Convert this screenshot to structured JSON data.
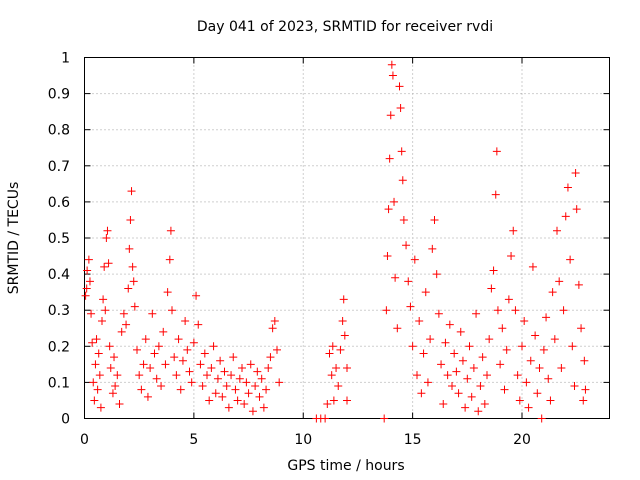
{
  "chart_data": {
    "type": "scatter",
    "title": "Day 041 of 2023, SRMTID for receiver rvdi",
    "xlabel": "GPS time / hours",
    "ylabel": "SRMTID / TECUs",
    "xlim": [
      0,
      24
    ],
    "ylim": [
      0,
      1
    ],
    "x_ticks": [
      0,
      5,
      10,
      15,
      20
    ],
    "x_tick_labels": [
      "0",
      "5",
      "10",
      "15",
      "20"
    ],
    "y_ticks": [
      0,
      0.1,
      0.2,
      0.3,
      0.4,
      0.5,
      0.6,
      0.7,
      0.8,
      0.9,
      1
    ],
    "y_tick_labels": [
      "0",
      "0.1",
      "0.2",
      "0.3",
      "0.4",
      "0.5",
      "0.6",
      "0.7",
      "0.8",
      "0.9",
      "1"
    ],
    "grid": true,
    "marker": "+",
    "marker_color": "#ff0000",
    "series": [
      {
        "name": "SRMTID",
        "points": [
          [
            0.05,
            0.34
          ],
          [
            0.1,
            0.36
          ],
          [
            0.12,
            0.41
          ],
          [
            0.2,
            0.44
          ],
          [
            0.25,
            0.38
          ],
          [
            0.3,
            0.29
          ],
          [
            0.35,
            0.21
          ],
          [
            0.4,
            0.1
          ],
          [
            0.45,
            0.05
          ],
          [
            0.5,
            0.15
          ],
          [
            0.55,
            0.22
          ],
          [
            0.6,
            0.08
          ],
          [
            0.65,
            0.18
          ],
          [
            0.7,
            0.12
          ],
          [
            0.75,
            0.03
          ],
          [
            0.8,
            0.27
          ],
          [
            0.85,
            0.33
          ],
          [
            0.9,
            0.42
          ],
          [
            0.95,
            0.3
          ],
          [
            1.0,
            0.5
          ],
          [
            1.05,
            0.52
          ],
          [
            1.1,
            0.43
          ],
          [
            1.15,
            0.2
          ],
          [
            1.2,
            0.14
          ],
          [
            1.3,
            0.07
          ],
          [
            1.35,
            0.17
          ],
          [
            1.4,
            0.09
          ],
          [
            1.5,
            0.12
          ],
          [
            1.6,
            0.04
          ],
          [
            1.7,
            0.24
          ],
          [
            1.8,
            0.29
          ],
          [
            1.9,
            0.26
          ],
          [
            2.0,
            0.36
          ],
          [
            2.05,
            0.47
          ],
          [
            2.1,
            0.55
          ],
          [
            2.15,
            0.63
          ],
          [
            2.2,
            0.42
          ],
          [
            2.25,
            0.38
          ],
          [
            2.3,
            0.31
          ],
          [
            2.4,
            0.19
          ],
          [
            2.5,
            0.12
          ],
          [
            2.6,
            0.08
          ],
          [
            2.7,
            0.15
          ],
          [
            2.8,
            0.22
          ],
          [
            2.9,
            0.06
          ],
          [
            3.0,
            0.14
          ],
          [
            3.1,
            0.29
          ],
          [
            3.2,
            0.18
          ],
          [
            3.3,
            0.11
          ],
          [
            3.4,
            0.2
          ],
          [
            3.5,
            0.09
          ],
          [
            3.6,
            0.24
          ],
          [
            3.7,
            0.15
          ],
          [
            3.8,
            0.35
          ],
          [
            3.9,
            0.44
          ],
          [
            3.95,
            0.52
          ],
          [
            4.0,
            0.3
          ],
          [
            4.1,
            0.17
          ],
          [
            4.2,
            0.12
          ],
          [
            4.3,
            0.22
          ],
          [
            4.4,
            0.08
          ],
          [
            4.5,
            0.16
          ],
          [
            4.6,
            0.27
          ],
          [
            4.7,
            0.19
          ],
          [
            4.8,
            0.13
          ],
          [
            4.9,
            0.1
          ],
          [
            5.0,
            0.21
          ],
          [
            5.1,
            0.34
          ],
          [
            5.2,
            0.26
          ],
          [
            5.3,
            0.15
          ],
          [
            5.4,
            0.09
          ],
          [
            5.5,
            0.18
          ],
          [
            5.6,
            0.12
          ],
          [
            5.7,
            0.05
          ],
          [
            5.8,
            0.14
          ],
          [
            5.9,
            0.2
          ],
          [
            6.0,
            0.07
          ],
          [
            6.1,
            0.11
          ],
          [
            6.2,
            0.16
          ],
          [
            6.3,
            0.06
          ],
          [
            6.4,
            0.13
          ],
          [
            6.5,
            0.09
          ],
          [
            6.6,
            0.03
          ],
          [
            6.7,
            0.12
          ],
          [
            6.8,
            0.17
          ],
          [
            6.9,
            0.08
          ],
          [
            7.0,
            0.05
          ],
          [
            7.1,
            0.11
          ],
          [
            7.2,
            0.14
          ],
          [
            7.3,
            0.04
          ],
          [
            7.4,
            0.1
          ],
          [
            7.5,
            0.07
          ],
          [
            7.6,
            0.15
          ],
          [
            7.7,
            0.02
          ],
          [
            7.8,
            0.09
          ],
          [
            7.9,
            0.13
          ],
          [
            8.0,
            0.06
          ],
          [
            8.1,
            0.11
          ],
          [
            8.2,
            0.03
          ],
          [
            8.3,
            0.08
          ],
          [
            8.4,
            0.14
          ],
          [
            8.5,
            0.17
          ],
          [
            8.6,
            0.25
          ],
          [
            8.7,
            0.27
          ],
          [
            8.8,
            0.19
          ],
          [
            8.9,
            0.1
          ],
          [
            10.6,
            0.0
          ],
          [
            10.8,
            0.0
          ],
          [
            11.0,
            0.0
          ],
          [
            11.1,
            0.04
          ],
          [
            11.2,
            0.18
          ],
          [
            11.3,
            0.12
          ],
          [
            11.35,
            0.2
          ],
          [
            11.4,
            0.05
          ],
          [
            11.5,
            0.14
          ],
          [
            11.6,
            0.09
          ],
          [
            11.7,
            0.19
          ],
          [
            11.8,
            0.27
          ],
          [
            11.85,
            0.33
          ],
          [
            11.9,
            0.23
          ],
          [
            12.0,
            0.05
          ],
          [
            12.0,
            0.14
          ],
          [
            13.7,
            0.0
          ],
          [
            13.8,
            0.3
          ],
          [
            13.85,
            0.45
          ],
          [
            13.9,
            0.58
          ],
          [
            13.95,
            0.72
          ],
          [
            14.0,
            0.84
          ],
          [
            14.05,
            0.98
          ],
          [
            14.1,
            0.95
          ],
          [
            14.15,
            0.6
          ],
          [
            14.2,
            0.39
          ],
          [
            14.3,
            0.25
          ],
          [
            14.4,
            0.92
          ],
          [
            14.45,
            0.86
          ],
          [
            14.5,
            0.74
          ],
          [
            14.55,
            0.66
          ],
          [
            14.6,
            0.55
          ],
          [
            14.7,
            0.48
          ],
          [
            14.8,
            0.38
          ],
          [
            14.9,
            0.31
          ],
          [
            15.0,
            0.2
          ],
          [
            15.1,
            0.44
          ],
          [
            15.2,
            0.12
          ],
          [
            15.3,
            0.27
          ],
          [
            15.4,
            0.07
          ],
          [
            15.5,
            0.18
          ],
          [
            15.6,
            0.35
          ],
          [
            15.7,
            0.1
          ],
          [
            15.8,
            0.22
          ],
          [
            15.9,
            0.47
          ],
          [
            16.0,
            0.55
          ],
          [
            16.1,
            0.4
          ],
          [
            16.2,
            0.29
          ],
          [
            16.3,
            0.15
          ],
          [
            16.4,
            0.04
          ],
          [
            16.5,
            0.21
          ],
          [
            16.6,
            0.12
          ],
          [
            16.7,
            0.26
          ],
          [
            16.8,
            0.09
          ],
          [
            16.9,
            0.18
          ],
          [
            17.0,
            0.13
          ],
          [
            17.1,
            0.07
          ],
          [
            17.2,
            0.24
          ],
          [
            17.3,
            0.16
          ],
          [
            17.4,
            0.03
          ],
          [
            17.5,
            0.11
          ],
          [
            17.6,
            0.2
          ],
          [
            17.7,
            0.06
          ],
          [
            17.8,
            0.14
          ],
          [
            17.9,
            0.29
          ],
          [
            18.0,
            0.02
          ],
          [
            18.1,
            0.09
          ],
          [
            18.2,
            0.17
          ],
          [
            18.3,
            0.04
          ],
          [
            18.4,
            0.12
          ],
          [
            18.5,
            0.22
          ],
          [
            18.6,
            0.36
          ],
          [
            18.7,
            0.41
          ],
          [
            18.8,
            0.62
          ],
          [
            18.85,
            0.74
          ],
          [
            18.9,
            0.3
          ],
          [
            19.0,
            0.15
          ],
          [
            19.1,
            0.25
          ],
          [
            19.2,
            0.08
          ],
          [
            19.3,
            0.19
          ],
          [
            19.4,
            0.33
          ],
          [
            19.5,
            0.45
          ],
          [
            19.6,
            0.52
          ],
          [
            19.7,
            0.3
          ],
          [
            19.8,
            0.12
          ],
          [
            19.9,
            0.05
          ],
          [
            20.0,
            0.2
          ],
          [
            20.1,
            0.27
          ],
          [
            20.2,
            0.1
          ],
          [
            20.3,
            0.03
          ],
          [
            20.4,
            0.16
          ],
          [
            20.5,
            0.42
          ],
          [
            20.6,
            0.23
          ],
          [
            20.7,
            0.07
          ],
          [
            20.8,
            0.14
          ],
          [
            20.9,
            0.0
          ],
          [
            21.0,
            0.19
          ],
          [
            21.1,
            0.28
          ],
          [
            21.2,
            0.11
          ],
          [
            21.3,
            0.05
          ],
          [
            21.4,
            0.35
          ],
          [
            21.5,
            0.22
          ],
          [
            21.6,
            0.52
          ],
          [
            21.7,
            0.38
          ],
          [
            21.8,
            0.14
          ],
          [
            21.9,
            0.3
          ],
          [
            22.0,
            0.56
          ],
          [
            22.1,
            0.64
          ],
          [
            22.2,
            0.44
          ],
          [
            22.3,
            0.2
          ],
          [
            22.4,
            0.09
          ],
          [
            22.45,
            0.68
          ],
          [
            22.5,
            0.58
          ],
          [
            22.6,
            0.37
          ],
          [
            22.7,
            0.25
          ],
          [
            22.8,
            0.05
          ],
          [
            22.85,
            0.16
          ],
          [
            22.9,
            0.08
          ]
        ]
      }
    ]
  }
}
